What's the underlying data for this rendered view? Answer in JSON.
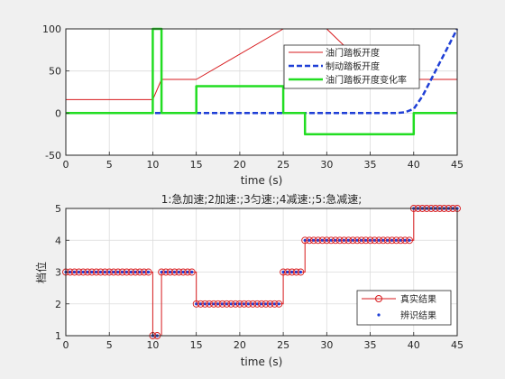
{
  "chart_data": [
    {
      "type": "line",
      "title": "",
      "xlabel": "time (s)",
      "ylabel": "",
      "xlim": [
        0,
        45
      ],
      "ylim": [
        -50,
        100
      ],
      "x_ticks": [
        "0",
        "5",
        "10",
        "15",
        "20",
        "25",
        "30",
        "35",
        "40",
        "45"
      ],
      "y_ticks": [
        "-50",
        "0",
        "50",
        "100"
      ],
      "legend_position": "top-right",
      "series": [
        {
          "name": "油门踏板开度",
          "color": "#d7191c",
          "style": "solid",
          "x": [
            0,
            10,
            11,
            15,
            25,
            27,
            30,
            33,
            36,
            45
          ],
          "y": [
            16,
            16,
            40,
            40,
            100,
            100,
            100,
            70,
            40,
            40
          ]
        },
        {
          "name": "制动踏板开度",
          "color": "#1f3fd6",
          "style": "dashed",
          "x": [
            0,
            38,
            39,
            40,
            41,
            42,
            43,
            44,
            45
          ],
          "y": [
            0,
            0,
            1,
            5,
            20,
            40,
            60,
            80,
            100
          ]
        },
        {
          "name": "油门踏板开度变化率",
          "color": "#22dd22",
          "style": "solid",
          "x": [
            0,
            10,
            10,
            11,
            11,
            15,
            15,
            25,
            25,
            27.5,
            27.5,
            40,
            40,
            45
          ],
          "y": [
            0,
            0,
            100,
            100,
            0,
            0,
            32,
            32,
            0,
            0,
            -25,
            -25,
            0,
            0
          ]
        }
      ]
    },
    {
      "type": "line",
      "title": "1:急加速;2加速:;3匀速:;4减速:;5:急减速;",
      "xlabel": "time (s)",
      "ylabel": "档位",
      "xlim": [
        0,
        45
      ],
      "ylim": [
        1,
        5
      ],
      "x_ticks": [
        "0",
        "5",
        "10",
        "15",
        "20",
        "25",
        "30",
        "35",
        "40",
        "45"
      ],
      "y_ticks": [
        "1",
        "2",
        "3",
        "4",
        "5"
      ],
      "legend_position": "bottom-right",
      "sample_step": 0.5,
      "segments": [
        {
          "from": 0,
          "to": 10,
          "value": 3
        },
        {
          "from": 10,
          "to": 11,
          "value": 1
        },
        {
          "from": 11,
          "to": 15,
          "value": 3
        },
        {
          "from": 15,
          "to": 25,
          "value": 2
        },
        {
          "from": 25,
          "to": 27.5,
          "value": 3
        },
        {
          "from": 27.5,
          "to": 40,
          "value": 4
        },
        {
          "from": 40,
          "to": 45,
          "value": 5
        }
      ],
      "series": [
        {
          "name": "真实结果",
          "color": "#d7191c",
          "marker": "circle"
        },
        {
          "name": "辨识结果",
          "color": "#1f3fd6",
          "marker": "dot"
        }
      ]
    }
  ]
}
